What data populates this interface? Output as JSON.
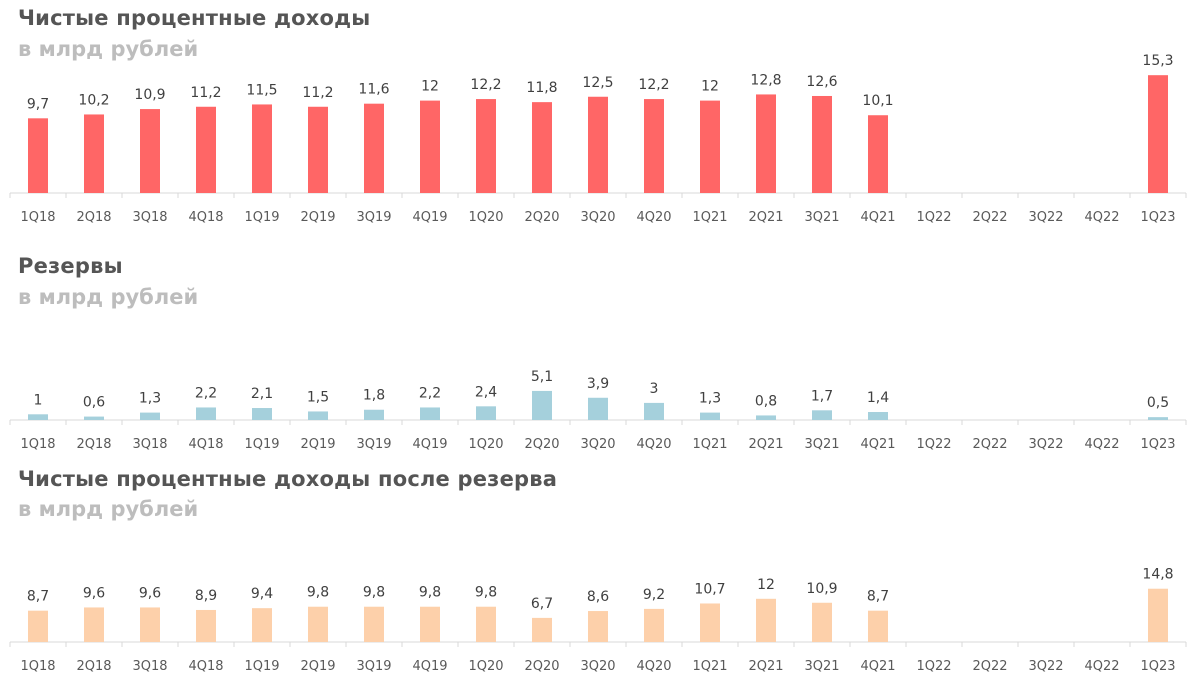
{
  "chart_data": [
    {
      "type": "bar",
      "title": "Чистые процентные доходы",
      "subtitle": "в млрд рублей",
      "color": "#ff6666",
      "categories": [
        "1Q18",
        "2Q18",
        "3Q18",
        "4Q18",
        "1Q19",
        "2Q19",
        "3Q19",
        "4Q19",
        "1Q20",
        "2Q20",
        "3Q20",
        "4Q20",
        "1Q21",
        "2Q21",
        "3Q21",
        "4Q21",
        "1Q22",
        "2Q22",
        "3Q22",
        "4Q22",
        "1Q23"
      ],
      "values": [
        9.7,
        10.2,
        10.9,
        11.2,
        11.5,
        11.2,
        11.6,
        12,
        12.2,
        11.8,
        12.5,
        12.2,
        12,
        12.8,
        12.6,
        10.1,
        null,
        null,
        null,
        null,
        15.3
      ],
      "labels": [
        "9,7",
        "10,2",
        "10,9",
        "11,2",
        "11,5",
        "11,2",
        "11,6",
        "12",
        "12,2",
        "11,8",
        "12,5",
        "12,2",
        "12",
        "12,8",
        "12,6",
        "10,1",
        "",
        "",
        "",
        "",
        "15,3"
      ],
      "grid": false
    },
    {
      "type": "bar",
      "title": "Резервы",
      "subtitle": "в млрд рублей",
      "color": "#a5d0dc",
      "categories": [
        "1Q18",
        "2Q18",
        "3Q18",
        "4Q18",
        "1Q19",
        "2Q19",
        "3Q19",
        "4Q19",
        "1Q20",
        "2Q20",
        "3Q20",
        "4Q20",
        "1Q21",
        "2Q21",
        "3Q21",
        "4Q21",
        "1Q22",
        "2Q22",
        "3Q22",
        "4Q22",
        "1Q23"
      ],
      "values": [
        1,
        0.6,
        1.3,
        2.2,
        2.1,
        1.5,
        1.8,
        2.2,
        2.4,
        5.1,
        3.9,
        3,
        1.3,
        0.8,
        1.7,
        1.4,
        null,
        null,
        null,
        null,
        0.5
      ],
      "labels": [
        "1",
        "0,6",
        "1,3",
        "2,2",
        "2,1",
        "1,5",
        "1,8",
        "2,2",
        "2,4",
        "5,1",
        "3,9",
        "3",
        "1,3",
        "0,8",
        "1,7",
        "1,4",
        "",
        "",
        "",
        "",
        "0,5"
      ],
      "grid": false
    },
    {
      "type": "bar",
      "title": "Чистые процентные доходы после резерва",
      "subtitle": "в млрд рублей",
      "color": "#fdd0aa",
      "categories": [
        "1Q18",
        "2Q18",
        "3Q18",
        "4Q18",
        "1Q19",
        "2Q19",
        "3Q19",
        "4Q19",
        "1Q20",
        "2Q20",
        "3Q20",
        "4Q20",
        "1Q21",
        "2Q21",
        "3Q21",
        "4Q21",
        "1Q22",
        "2Q22",
        "3Q22",
        "4Q22",
        "1Q23"
      ],
      "values": [
        8.7,
        9.6,
        9.6,
        8.9,
        9.4,
        9.8,
        9.8,
        9.8,
        9.8,
        6.7,
        8.6,
        9.2,
        10.7,
        12,
        10.9,
        8.7,
        null,
        null,
        null,
        null,
        14.8
      ],
      "labels": [
        "8,7",
        "9,6",
        "9,6",
        "8,9",
        "9,4",
        "9,8",
        "9,8",
        "9,8",
        "9,8",
        "6,7",
        "8,6",
        "9,2",
        "10,7",
        "12",
        "10,9",
        "8,7",
        "",
        "",
        "",
        "",
        "14,8"
      ],
      "grid": false
    }
  ]
}
